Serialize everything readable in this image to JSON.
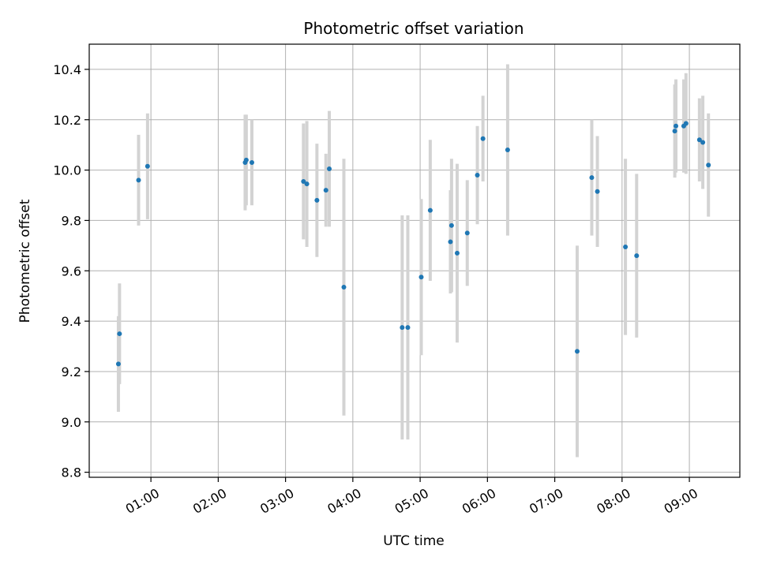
{
  "chart_data": {
    "type": "scatter",
    "title": "Photometric offset variation",
    "xlabel": "UTC time",
    "ylabel": "Photometric offset",
    "x_unit": "UTC time (HH:MM)",
    "xlim": [
      "00:05",
      "09:45"
    ],
    "ylim": [
      8.78,
      10.5
    ],
    "grid": true,
    "legend": "none",
    "x_ticks": [
      "01:00",
      "02:00",
      "03:00",
      "04:00",
      "05:00",
      "06:00",
      "07:00",
      "08:00",
      "09:00"
    ],
    "y_ticks": [
      "8.8",
      "9.0",
      "9.2",
      "9.4",
      "9.6",
      "9.8",
      "10.0",
      "10.2",
      "10.4"
    ],
    "colors": {
      "point": "#1f77b4",
      "errorbar": "#d3d3d3",
      "grid": "#b0b0b0"
    },
    "series": [
      {
        "points": [
          {
            "x": "00:31",
            "y": 9.23,
            "yerr": 0.19
          },
          {
            "x": "00:32",
            "y": 9.35,
            "yerr": 0.2
          },
          {
            "x": "00:49",
            "y": 9.96,
            "yerr": 0.18
          },
          {
            "x": "00:57",
            "y": 10.015,
            "yerr": 0.21
          },
          {
            "x": "02:24",
            "y": 10.03,
            "yerr": 0.19
          },
          {
            "x": "02:25",
            "y": 10.04,
            "yerr": 0.18
          },
          {
            "x": "02:30",
            "y": 10.03,
            "yerr": 0.17
          },
          {
            "x": "03:16",
            "y": 9.955,
            "yerr": 0.23
          },
          {
            "x": "03:19",
            "y": 9.945,
            "yerr": 0.25
          },
          {
            "x": "03:28",
            "y": 9.88,
            "yerr": 0.225
          },
          {
            "x": "03:36",
            "y": 9.92,
            "yerr": 0.145
          },
          {
            "x": "03:39",
            "y": 10.005,
            "yerr": 0.23
          },
          {
            "x": "03:52",
            "y": 9.535,
            "yerr": 0.51
          },
          {
            "x": "04:44",
            "y": 9.375,
            "yerr": 0.445
          },
          {
            "x": "04:49",
            "y": 9.375,
            "yerr": 0.445
          },
          {
            "x": "05:01",
            "y": 9.575,
            "yerr": 0.31
          },
          {
            "x": "05:09",
            "y": 9.84,
            "yerr": 0.28
          },
          {
            "x": "05:27",
            "y": 9.715,
            "yerr": 0.205
          },
          {
            "x": "05:28",
            "y": 9.78,
            "yerr": 0.265
          },
          {
            "x": "05:33",
            "y": 9.67,
            "yerr": 0.355
          },
          {
            "x": "05:42",
            "y": 9.75,
            "yerr": 0.21
          },
          {
            "x": "05:51",
            "y": 9.98,
            "yerr": 0.195
          },
          {
            "x": "05:56",
            "y": 10.125,
            "yerr": 0.17
          },
          {
            "x": "06:18",
            "y": 10.08,
            "yerr": 0.34
          },
          {
            "x": "07:20",
            "y": 9.28,
            "yerr": 0.42
          },
          {
            "x": "07:33",
            "y": 9.97,
            "yerr": 0.23
          },
          {
            "x": "07:38",
            "y": 9.915,
            "yerr": 0.22
          },
          {
            "x": "08:03",
            "y": 9.695,
            "yerr": 0.35
          },
          {
            "x": "08:13",
            "y": 9.66,
            "yerr": 0.325
          },
          {
            "x": "08:47",
            "y": 10.155,
            "yerr": 0.185
          },
          {
            "x": "08:48",
            "y": 10.175,
            "yerr": 0.185
          },
          {
            "x": "08:55",
            "y": 10.175,
            "yerr": 0.185
          },
          {
            "x": "08:57",
            "y": 10.185,
            "yerr": 0.2
          },
          {
            "x": "09:09",
            "y": 10.12,
            "yerr": 0.165
          },
          {
            "x": "09:12",
            "y": 10.11,
            "yerr": 0.185
          },
          {
            "x": "09:17",
            "y": 10.02,
            "yerr": 0.205
          }
        ]
      }
    ]
  }
}
